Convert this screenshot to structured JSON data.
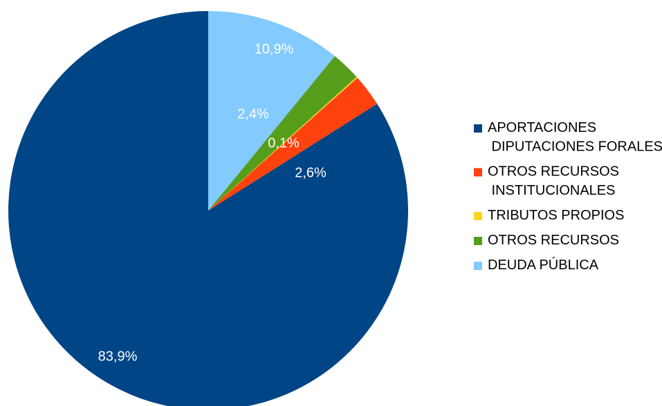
{
  "chart_data": {
    "type": "pie",
    "categories": [
      "APORTACIONES DIPUTACIONES FORALES",
      "OTROS RECURSOS INSTITUCIONALES",
      "TRIBUTOS PROPIOS",
      "OTROS RECURSOS",
      "DEUDA PÚBLICA"
    ],
    "values": [
      83.9,
      2.6,
      0.1,
      2.4,
      10.9
    ],
    "value_labels": [
      "83,9%",
      "2,6%",
      "0,1%",
      "2,4%",
      "10,9%"
    ],
    "colors": [
      "#004586",
      "#ff420e",
      "#ffd320",
      "#579d1c",
      "#83caff"
    ],
    "legend": "right"
  }
}
